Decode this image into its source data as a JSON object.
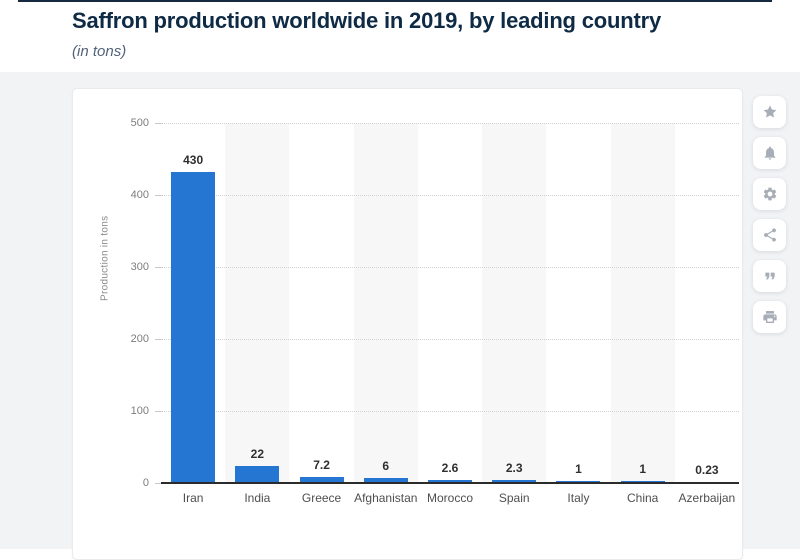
{
  "page": {
    "title": "Saffron production worldwide in 2019, by leading country",
    "subtitle": "(in tons)"
  },
  "chart_data": {
    "type": "bar",
    "title": "Saffron production worldwide in 2019, by leading country",
    "subtitle": "(in tons)",
    "categories": [
      "Iran",
      "India",
      "Greece",
      "Afghanistan",
      "Morocco",
      "Spain",
      "Italy",
      "China",
      "Azerbaijan"
    ],
    "values": [
      430,
      22,
      7.2,
      6,
      2.6,
      2.3,
      1,
      1,
      0.23
    ],
    "value_labels": [
      "430",
      "22",
      "7.2",
      "6",
      "2.6",
      "2.3",
      "1",
      "1",
      "0.23"
    ],
    "xlabel": "",
    "ylabel": "Production in tons",
    "ylim": [
      0,
      500
    ],
    "yticks": [
      0,
      100,
      200,
      300,
      400,
      500
    ],
    "grid": "horizontal-dotted",
    "legend_position": "none",
    "bar_color": "#2575d2",
    "plot_band_color": "#f7f7f8"
  },
  "toolbar": {
    "buttons": [
      {
        "icon": "star-icon",
        "name": "favorite"
      },
      {
        "icon": "bell-icon",
        "name": "alerts"
      },
      {
        "icon": "gear-icon",
        "name": "settings"
      },
      {
        "icon": "share-icon",
        "name": "share"
      },
      {
        "icon": "quote-icon",
        "name": "cite"
      },
      {
        "icon": "printer-icon",
        "name": "print"
      }
    ]
  },
  "colors": {
    "accent_blue": "#2575d2",
    "title_navy": "#0e2a45",
    "section_bg": "#f2f3f5",
    "axis_line": "#2b2b2b"
  }
}
